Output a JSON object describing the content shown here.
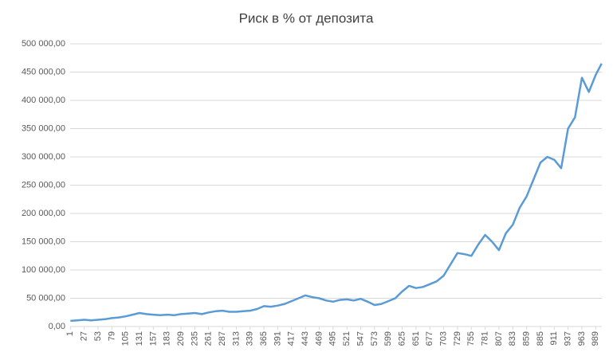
{
  "chart_data": {
    "type": "line",
    "title": "Риск в % от депозита",
    "x": [
      1,
      14,
      27,
      40,
      53,
      66,
      79,
      92,
      105,
      118,
      131,
      144,
      157,
      170,
      183,
      196,
      209,
      222,
      235,
      248,
      261,
      274,
      287,
      300,
      313,
      326,
      339,
      352,
      365,
      378,
      391,
      404,
      417,
      430,
      443,
      456,
      469,
      482,
      495,
      508,
      521,
      534,
      547,
      560,
      573,
      586,
      599,
      612,
      625,
      638,
      651,
      664,
      677,
      690,
      703,
      716,
      729,
      742,
      755,
      768,
      781,
      794,
      807,
      820,
      833,
      846,
      859,
      872,
      885,
      898,
      911,
      924,
      937,
      950,
      963,
      976,
      989,
      1000
    ],
    "series": [
      {
        "color": "#5b9bd5",
        "values": [
          10000,
          11000,
          12000,
          11000,
          12000,
          13000,
          15000,
          16000,
          18000,
          21000,
          24000,
          22000,
          21000,
          20000,
          21000,
          20000,
          22000,
          23000,
          24000,
          22000,
          25000,
          27000,
          28000,
          26000,
          26000,
          27000,
          28000,
          31000,
          36000,
          35000,
          37000,
          40000,
          45000,
          50000,
          55000,
          52000,
          50000,
          46000,
          44000,
          47000,
          48000,
          46000,
          49000,
          44000,
          38000,
          40000,
          45000,
          50000,
          62000,
          72000,
          68000,
          70000,
          75000,
          80000,
          90000,
          110000,
          130000,
          128000,
          125000,
          145000,
          162000,
          150000,
          135000,
          165000,
          180000,
          210000,
          230000,
          260000,
          290000,
          300000,
          295000,
          280000,
          350000,
          370000,
          440000,
          415000,
          445000,
          465000
        ]
      }
    ],
    "xlim": [
      0.5,
      1000.5
    ],
    "xticks": [
      1,
      27,
      53,
      79,
      105,
      131,
      157,
      183,
      209,
      235,
      261,
      287,
      313,
      339,
      365,
      391,
      417,
      443,
      469,
      495,
      521,
      547,
      573,
      599,
      625,
      651,
      677,
      703,
      729,
      755,
      781,
      807,
      833,
      859,
      885,
      911,
      937,
      963,
      989
    ],
    "ylim": [
      0,
      500000
    ],
    "yticks": [
      {
        "value": 0,
        "label": "0,00"
      },
      {
        "value": 50000,
        "label": "50 000,00"
      },
      {
        "value": 100000,
        "label": "100 000,00"
      },
      {
        "value": 150000,
        "label": "150 000,00"
      },
      {
        "value": 200000,
        "label": "200 000,00"
      },
      {
        "value": 250000,
        "label": "250 000,00"
      },
      {
        "value": 300000,
        "label": "300 000,00"
      },
      {
        "value": 350000,
        "label": "350 000,00"
      },
      {
        "value": 400000,
        "label": "400 000,00"
      },
      {
        "value": 450000,
        "label": "450 000,00"
      },
      {
        "value": 500000,
        "label": "500 000,00"
      }
    ],
    "grid": true
  }
}
